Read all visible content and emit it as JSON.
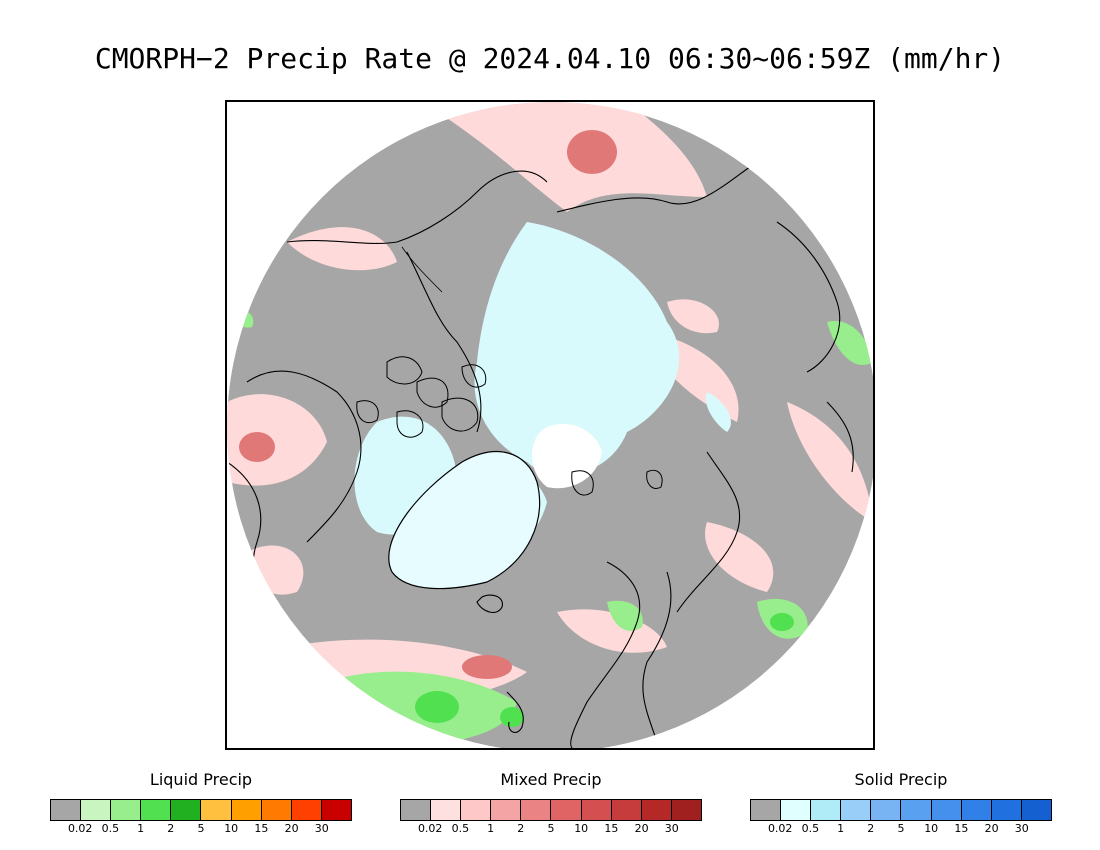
{
  "title": "CMORPH−2 Precip Rate @ 2024.04.10 06:30~06:59Z (mm/hr)",
  "legends": [
    {
      "title": "Liquid Precip",
      "colors": [
        "#a6a6a6",
        "#c8f5c0",
        "#98ee8c",
        "#50e050",
        "#20b020",
        "#ffc040",
        "#ffa000",
        "#ff7a00",
        "#ff4000",
        "#c80000"
      ],
      "ticks": [
        "0.02",
        "0.5",
        "1",
        "2",
        "5",
        "10",
        "15",
        "20",
        "30"
      ]
    },
    {
      "title": "Mixed Precip",
      "colors": [
        "#a6a6a6",
        "#ffe0e0",
        "#ffc8c8",
        "#f4a4a4",
        "#ea8484",
        "#e06464",
        "#d45050",
        "#c63c3c",
        "#b42828",
        "#a02020"
      ],
      "ticks": [
        "0.02",
        "0.5",
        "1",
        "2",
        "5",
        "10",
        "15",
        "20",
        "30"
      ]
    },
    {
      "title": "Solid Precip",
      "colors": [
        "#a6a6a6",
        "#e0ffff",
        "#b0ecf8",
        "#98cef8",
        "#78b4f4",
        "#5aa0f0",
        "#4490ec",
        "#3080e8",
        "#2070e0",
        "#1460d0"
      ],
      "ticks": [
        "0.02",
        "0.5",
        "1",
        "2",
        "5",
        "10",
        "15",
        "20",
        "30"
      ]
    }
  ]
}
